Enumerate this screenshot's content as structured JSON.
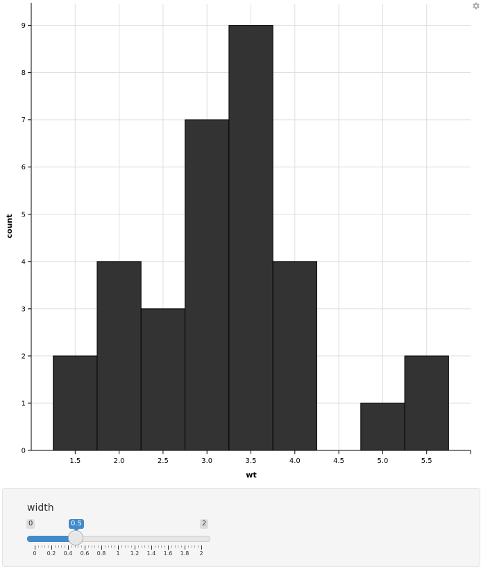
{
  "chart_data": {
    "type": "bar",
    "subtype": "histogram",
    "bins": [
      {
        "x0": 1.25,
        "x1": 1.75,
        "count": 2
      },
      {
        "x0": 1.75,
        "x1": 2.25,
        "count": 4
      },
      {
        "x0": 2.25,
        "x1": 2.75,
        "count": 3
      },
      {
        "x0": 2.75,
        "x1": 3.25,
        "count": 7
      },
      {
        "x0": 3.25,
        "x1": 3.75,
        "count": 9
      },
      {
        "x0": 3.75,
        "x1": 4.25,
        "count": 4
      },
      {
        "x0": 4.25,
        "x1": 4.75,
        "count": 0
      },
      {
        "x0": 4.75,
        "x1": 5.25,
        "count": 1
      },
      {
        "x0": 5.25,
        "x1": 5.75,
        "count": 2
      }
    ],
    "xlabel": "wt",
    "ylabel": "count",
    "x_ticks": [
      1.5,
      2.0,
      2.5,
      3.0,
      3.5,
      4.0,
      4.5,
      5.0,
      5.5
    ],
    "x_tick_labels": [
      "1.5",
      "2.0",
      "2.5",
      "3.0",
      "3.5",
      "4.0",
      "4.5",
      "5.0",
      "5.5"
    ],
    "y_ticks": [
      0,
      1,
      2,
      3,
      4,
      5,
      6,
      7,
      8,
      9
    ],
    "y_tick_labels": [
      "0",
      "1",
      "2",
      "3",
      "4",
      "5",
      "6",
      "7",
      "8",
      "9"
    ],
    "xlim": [
      1.0,
      6.0
    ],
    "ylim": [
      0,
      9.45
    ],
    "grid": true,
    "bar_color": "#333333",
    "bar_stroke": "#000000",
    "grid_color": "#dddddd"
  },
  "toolbar": {
    "settings_icon": "gear-icon"
  },
  "control": {
    "label": "width",
    "min_label": "0",
    "max_label": "2",
    "value_label": "0.5",
    "value": 0.5,
    "min": 0,
    "max": 2,
    "accent": "#428bca",
    "grid_labels": [
      "0",
      "0.2",
      "0.4",
      "0.6",
      "0.8",
      "1",
      "1.2",
      "1.4",
      "1.6",
      "1.8",
      "2"
    ]
  }
}
